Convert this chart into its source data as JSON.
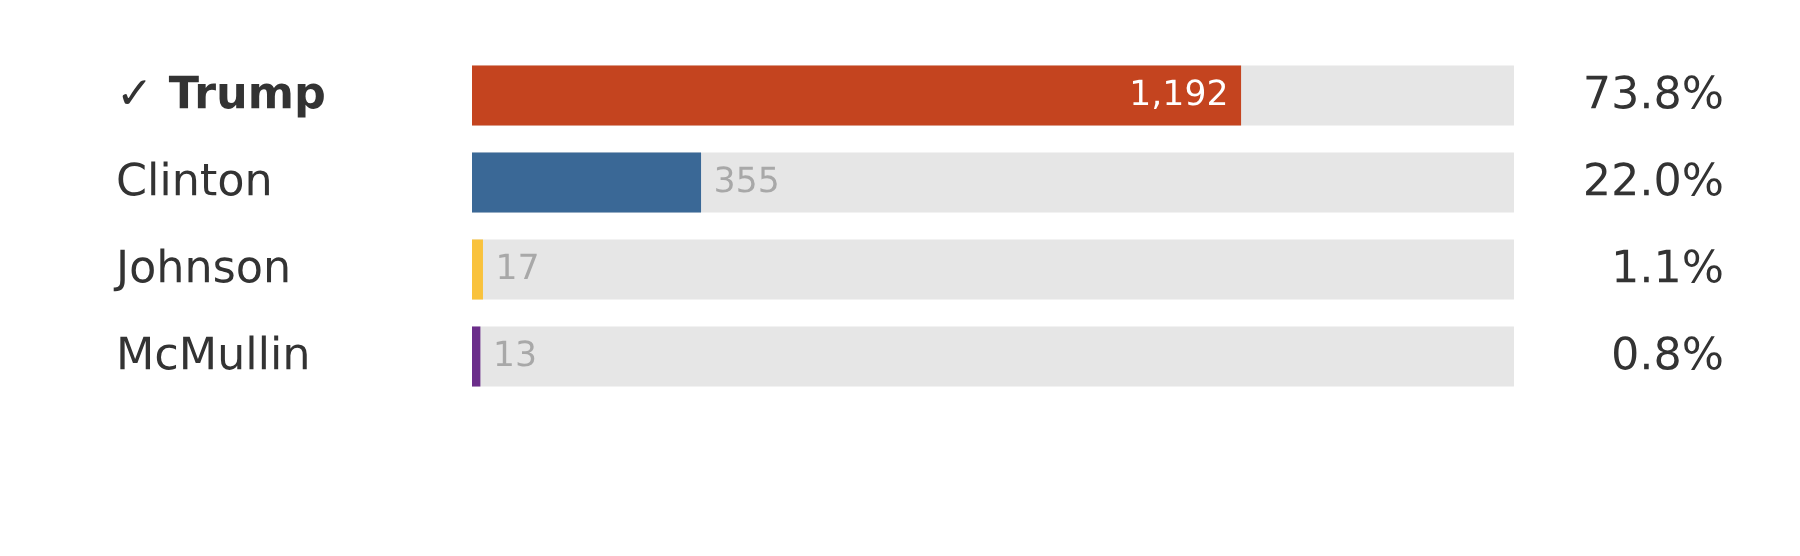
{
  "chart_data": {
    "type": "bar",
    "orientation": "horizontal",
    "categories": [
      "✓ Trump",
      "Clinton",
      "Johnson",
      "McMullin"
    ],
    "values": [
      1192,
      355,
      17,
      13
    ],
    "colors": [
      "#c4441f",
      "#3a6896",
      "#f9c23c",
      "#6b2d8a"
    ],
    "value_labels": [
      "1,192",
      "355",
      "17",
      "13"
    ],
    "xlim": [
      0,
      1615
    ],
    "annotations": [
      "73.8%",
      "22.0%",
      "1.1%",
      "0.8%"
    ],
    "legend": false
  }
}
